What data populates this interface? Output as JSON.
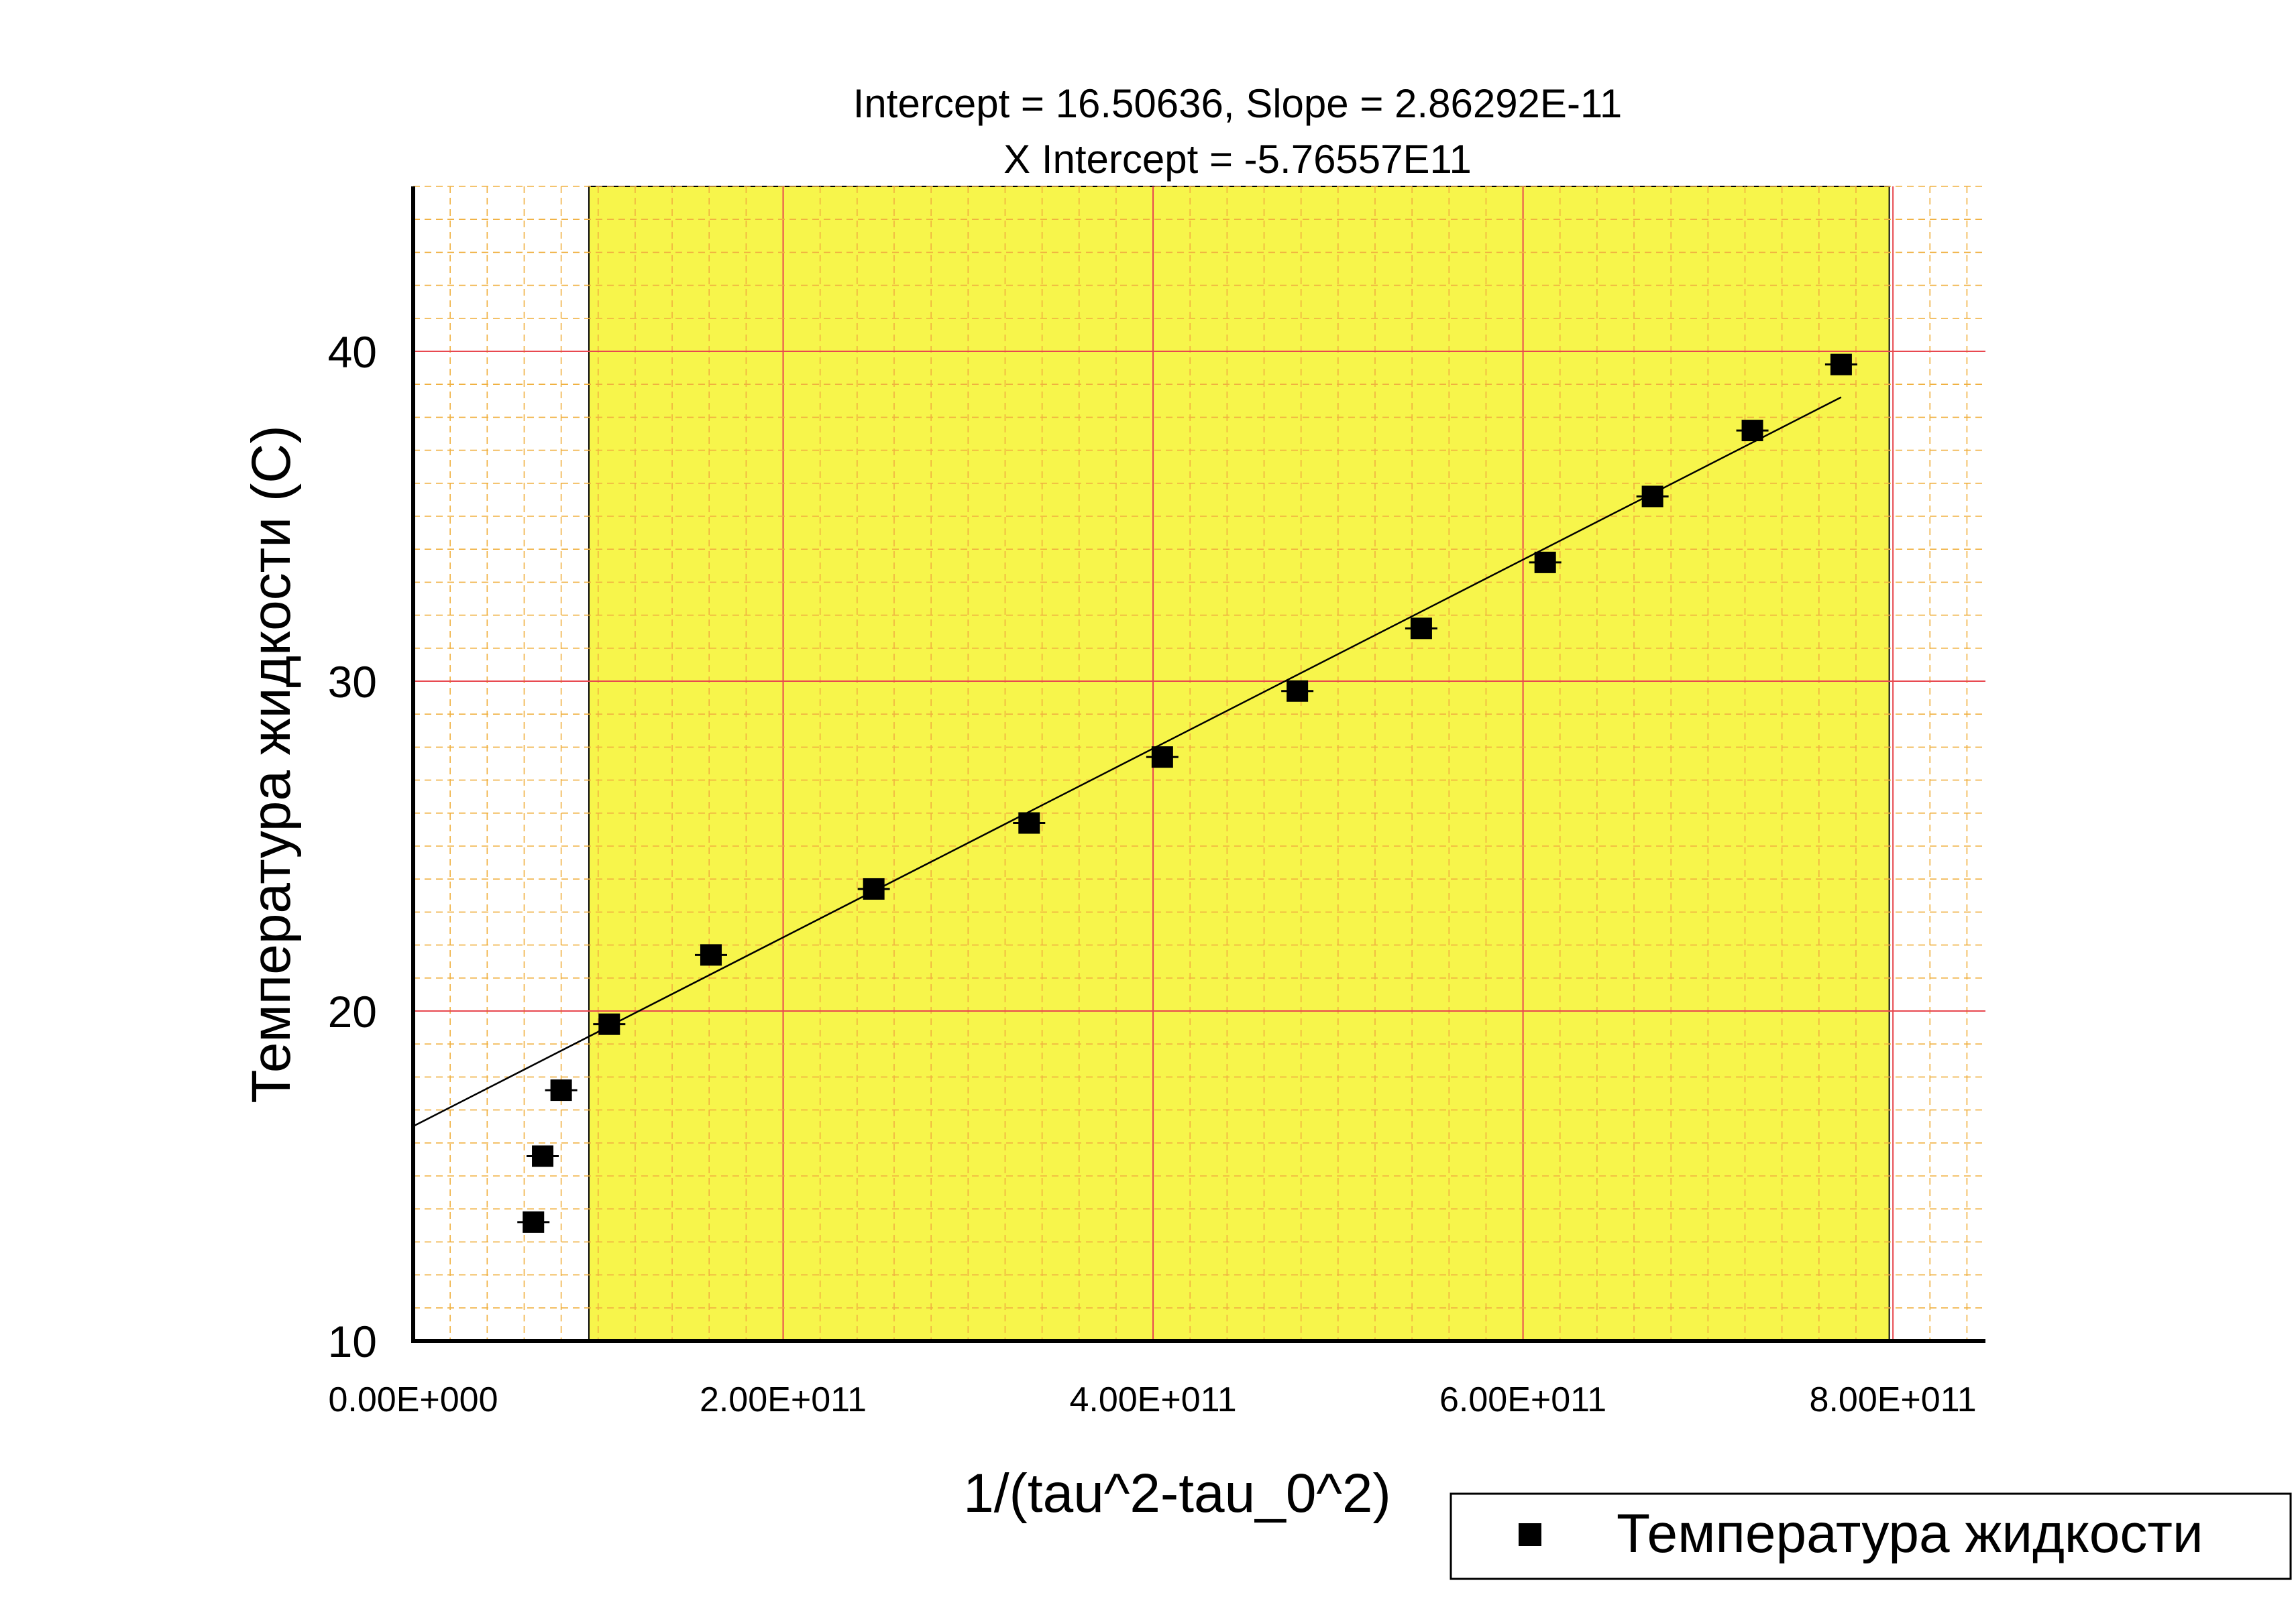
{
  "chart_data": {
    "type": "scatter",
    "title_lines": [
      "Intercept = 16.50636, Slope = 2.86292E-11",
      "X Intercept = -5.76557E11"
    ],
    "xlabel": "1/(tau^2-tau_0^2)",
    "ylabel": "Температура жидкости (C)",
    "xlim": [
      0,
      850000000000
    ],
    "ylim": [
      10,
      45
    ],
    "x_ticks": [
      0,
      200000000000,
      400000000000,
      600000000000,
      800000000000
    ],
    "x_tick_labels": [
      "0.00E+000",
      "2.00E+011",
      "4.00E+011",
      "6.00E+011",
      "8.00E+011"
    ],
    "y_ticks": [
      10,
      20,
      30,
      40
    ],
    "y_tick_labels": [
      "10",
      "20",
      "30",
      "40"
    ],
    "grid": true,
    "highlight_region": {
      "x_range": [
        95000000000,
        798000000000
      ],
      "color": "#f7f54b"
    },
    "series": [
      {
        "name": "Температура жидкости",
        "marker": "square",
        "color": "#000000",
        "x": [
          65000000000,
          70000000000,
          80000000000,
          106000000000,
          161000000000,
          249000000000,
          333000000000,
          405000000000,
          478000000000,
          545000000000,
          612000000000,
          670000000000,
          724000000000,
          772000000000
        ],
        "y": [
          13.6,
          15.6,
          17.6,
          19.6,
          21.7,
          23.7,
          25.7,
          27.7,
          29.7,
          31.6,
          33.6,
          35.6,
          37.6,
          39.6
        ]
      }
    ],
    "fit_line": {
      "intercept": 16.50636,
      "slope": 2.86292e-11,
      "x_range": [
        0,
        772000000000
      ],
      "color": "#000000"
    },
    "legend": {
      "position": "bottom-right",
      "entries": [
        "Температура жидкости"
      ]
    },
    "colors": {
      "major_grid": "#e8484f",
      "minor_grid": "#f0b040",
      "axis": "#000000"
    }
  }
}
